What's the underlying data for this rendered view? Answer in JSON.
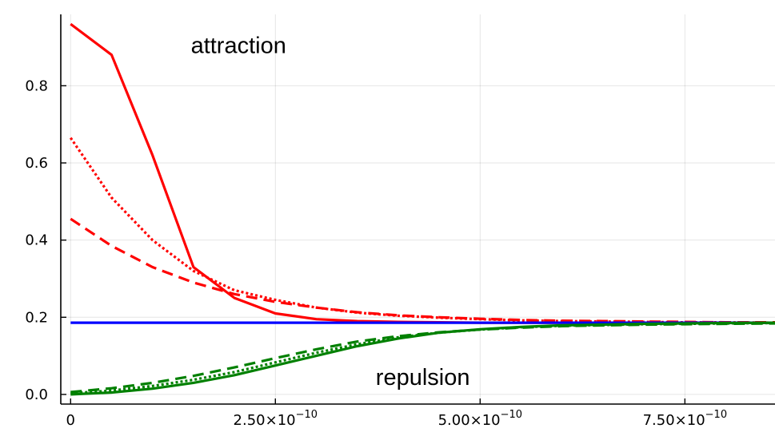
{
  "chart_data": {
    "type": "line",
    "title": "",
    "xlabel": "",
    "ylabel": "",
    "xlim": [
      -1.2e-11,
      8.6e-10
    ],
    "ylim": [
      -0.025,
      0.985
    ],
    "grid": true,
    "legend": "none",
    "x_ticks": [
      {
        "value": 0,
        "mantissa": "0",
        "exponent": ""
      },
      {
        "value": 2.5e-10,
        "mantissa": "2.50×10",
        "exponent": "−10"
      },
      {
        "value": 5e-10,
        "mantissa": "5.00×10",
        "exponent": "−10"
      },
      {
        "value": 7.5e-10,
        "mantissa": "7.50×10",
        "exponent": "−10"
      }
    ],
    "y_ticks": [
      {
        "value": 0.0,
        "label": "0.0"
      },
      {
        "value": 0.2,
        "label": "0.2"
      },
      {
        "value": 0.4,
        "label": "0.4"
      },
      {
        "value": 0.6,
        "label": "0.6"
      },
      {
        "value": 0.8,
        "label": "0.8"
      }
    ],
    "annotations": [
      {
        "text": "attraction",
        "x": 2.05e-10,
        "y": 0.905
      },
      {
        "text": "repulsion",
        "x": 4.3e-10,
        "y": 0.045
      }
    ],
    "x": [
      0,
      5e-11,
      1e-10,
      1.5e-10,
      2e-10,
      2.5e-10,
      3e-10,
      3.5e-10,
      4e-10,
      4.5e-10,
      5e-10,
      5.5e-10,
      6e-10,
      6.5e-10,
      7e-10,
      7.5e-10,
      8e-10,
      8.6e-10
    ],
    "series": [
      {
        "color": "#ff0000",
        "style": "solid",
        "values": [
          0.96,
          0.88,
          0.62,
          0.33,
          0.25,
          0.21,
          0.195,
          0.19,
          0.188,
          0.187,
          0.186,
          0.186,
          0.186,
          0.186,
          0.186,
          0.186,
          0.186,
          0.186
        ]
      },
      {
        "color": "#ff0000",
        "style": "dotted",
        "values": [
          0.665,
          0.51,
          0.4,
          0.32,
          0.27,
          0.245,
          0.225,
          0.212,
          0.204,
          0.199,
          0.195,
          0.192,
          0.19,
          0.189,
          0.188,
          0.187,
          0.187,
          0.186
        ]
      },
      {
        "color": "#ff0000",
        "style": "dashed",
        "values": [
          0.455,
          0.385,
          0.33,
          0.29,
          0.26,
          0.24,
          0.225,
          0.213,
          0.205,
          0.2,
          0.196,
          0.193,
          0.191,
          0.19,
          0.189,
          0.188,
          0.187,
          0.187
        ]
      },
      {
        "color": "#0000ff",
        "style": "solid",
        "values": [
          0.186,
          0.186,
          0.186,
          0.186,
          0.186,
          0.186,
          0.186,
          0.186,
          0.186,
          0.186,
          0.186,
          0.186,
          0.186,
          0.186,
          0.186,
          0.186,
          0.186,
          0.186
        ]
      },
      {
        "color": "#008000",
        "style": "solid",
        "values": [
          0.0,
          0.005,
          0.015,
          0.03,
          0.05,
          0.075,
          0.1,
          0.125,
          0.145,
          0.16,
          0.169,
          0.175,
          0.179,
          0.181,
          0.183,
          0.184,
          0.185,
          0.186
        ]
      },
      {
        "color": "#008000",
        "style": "dotted",
        "values": [
          0.003,
          0.01,
          0.022,
          0.038,
          0.058,
          0.083,
          0.108,
          0.13,
          0.148,
          0.16,
          0.168,
          0.174,
          0.178,
          0.18,
          0.182,
          0.183,
          0.184,
          0.185
        ]
      },
      {
        "color": "#008000",
        "style": "dashed",
        "values": [
          0.006,
          0.016,
          0.03,
          0.048,
          0.07,
          0.094,
          0.117,
          0.137,
          0.151,
          0.161,
          0.168,
          0.173,
          0.177,
          0.179,
          0.181,
          0.182,
          0.183,
          0.184
        ]
      }
    ]
  }
}
